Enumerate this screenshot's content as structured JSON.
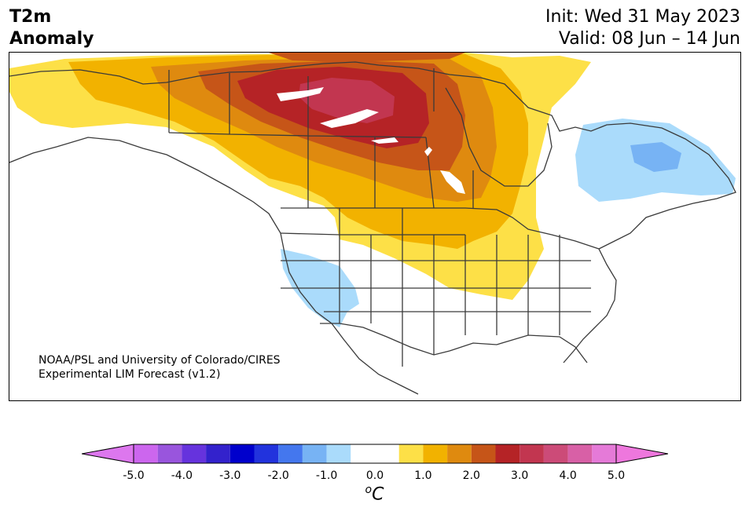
{
  "title": {
    "line1": "T2m",
    "line2": "Anomaly"
  },
  "dates": {
    "init": "Init: Wed 31 May 2023",
    "valid": "Valid: 08 Jun – 14 Jun"
  },
  "credit": {
    "line1": "NOAA/PSL and University of Colorado/CIRES",
    "line2": "Experimental LIM Forecast (v1.2)"
  },
  "colorbar": {
    "unit": "oC",
    "tick_labels": [
      "-5.0",
      "-4.0",
      "-3.0",
      "-2.0",
      "-1.0",
      "0.0",
      "1.0",
      "2.0",
      "3.0",
      "4.0",
      "5.0"
    ],
    "tick_values": [
      -5,
      -4,
      -3,
      -2,
      -1,
      0,
      1,
      2,
      3,
      4,
      5
    ],
    "bounds": [
      -5,
      -4.5,
      -4,
      -3.5,
      -3,
      -2.5,
      -2,
      -1.5,
      -1,
      -0.5,
      0.5,
      1,
      1.5,
      2,
      2.5,
      3,
      3.5,
      4,
      4.5,
      5
    ],
    "colors": [
      "#cc66ee",
      "#9955dd",
      "#6633dd",
      "#3322cc",
      "#0000cc",
      "#2233dd",
      "#4477ee",
      "#77b3f4",
      "#aadbfb",
      "#ffffff",
      "#fde047",
      "#f2b200",
      "#df8a0f",
      "#c65518",
      "#b52326",
      "#c23650",
      "#cc4b78",
      "#d860a6",
      "#e57ad8"
    ],
    "under_color": "#dd77ee",
    "over_color": "#ee77dd"
  }
}
